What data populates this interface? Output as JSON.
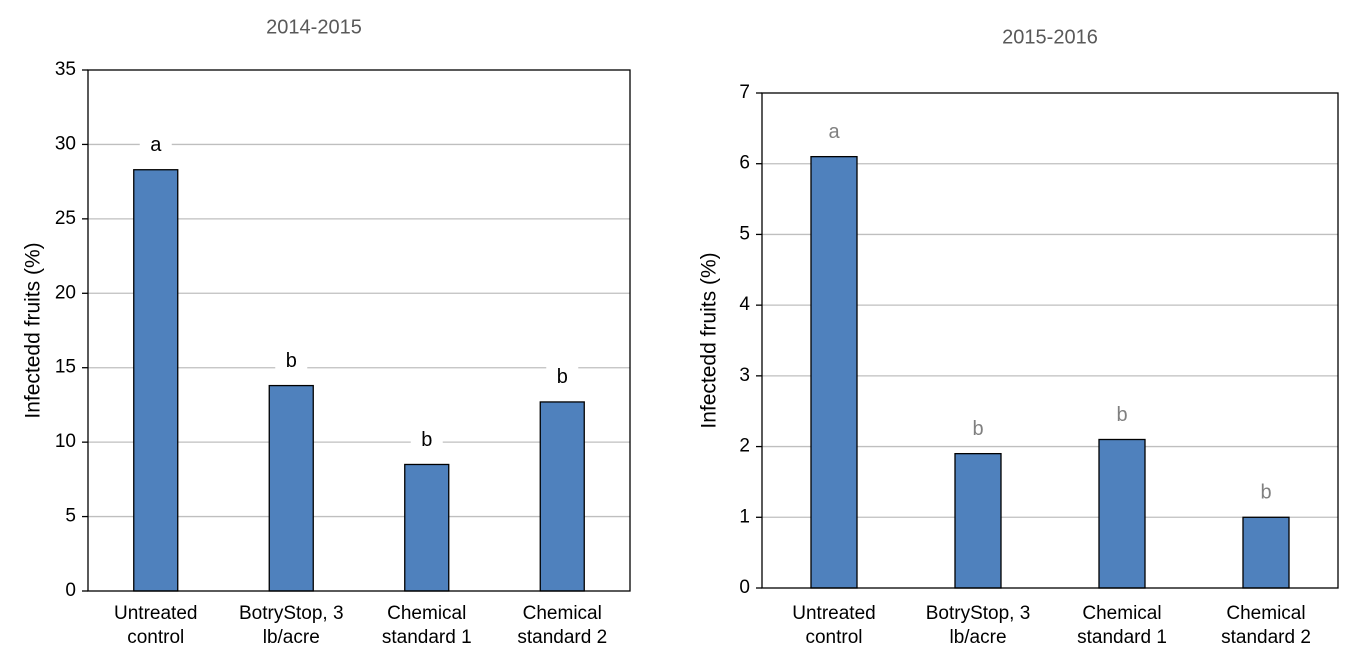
{
  "chart_data": [
    {
      "type": "bar",
      "title": "2014-2015",
      "xlabel": "",
      "ylabel": "Infectedd fruits (%)",
      "ylim": [
        0,
        35
      ],
      "yticks": [
        "0",
        "5",
        "10",
        "15",
        "20",
        "25",
        "30",
        "35"
      ],
      "categories": [
        [
          "Untreated",
          "control"
        ],
        [
          "BotryStop, 3",
          "lb/acre"
        ],
        [
          "Chemical",
          "standard 1"
        ],
        [
          "Chemical",
          "standard 2"
        ]
      ],
      "values": [
        28.3,
        13.8,
        8.5,
        12.7
      ],
      "data_labels": [
        "a",
        "b",
        "b",
        "b"
      ],
      "bar_color": "#4f81bd",
      "label_color": "#000000",
      "grid": true,
      "legend": "none"
    },
    {
      "type": "bar",
      "title": "2015-2016",
      "xlabel": "",
      "ylabel": "Infectedd fruits (%)",
      "ylim": [
        0,
        7
      ],
      "yticks": [
        "0",
        "1",
        "2",
        "3",
        "4",
        "5",
        "6",
        "7"
      ],
      "categories": [
        [
          "Untreated",
          "control"
        ],
        [
          "BotryStop, 3",
          "lb/acre"
        ],
        [
          "Chemical",
          "standard 1"
        ],
        [
          "Chemical",
          "standard 2"
        ]
      ],
      "values": [
        6.1,
        1.9,
        2.1,
        1.0
      ],
      "data_labels": [
        "a",
        "b",
        "b",
        "b"
      ],
      "bar_color": "#4f81bd",
      "label_color": "#808080",
      "grid": true,
      "legend": "none"
    }
  ]
}
